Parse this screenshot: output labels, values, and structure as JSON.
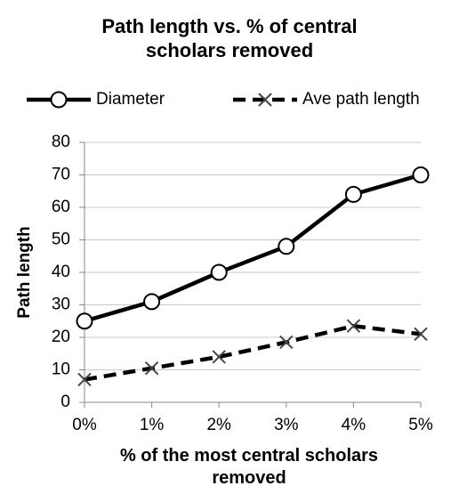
{
  "chart_data": {
    "type": "line",
    "title": "Path length vs. % of central scholars removed",
    "x_label": "% of the most central scholars removed",
    "y_label": "Path length",
    "categories": [
      "0%",
      "1%",
      "2%",
      "3%",
      "4%",
      "5%"
    ],
    "series": [
      {
        "name": "Diameter",
        "color": "#000000",
        "values": [
          25,
          31,
          40,
          48,
          64,
          70
        ]
      },
      {
        "name": "Ave path length",
        "color": "#000000",
        "values": [
          7,
          10.5,
          14,
          18.5,
          23.5,
          21
        ]
      }
    ],
    "ylim": [
      0,
      80
    ],
    "yticks": [
      0,
      10,
      20,
      30,
      40,
      50,
      60,
      70,
      80
    ],
    "grid": true,
    "legend": "top"
  }
}
